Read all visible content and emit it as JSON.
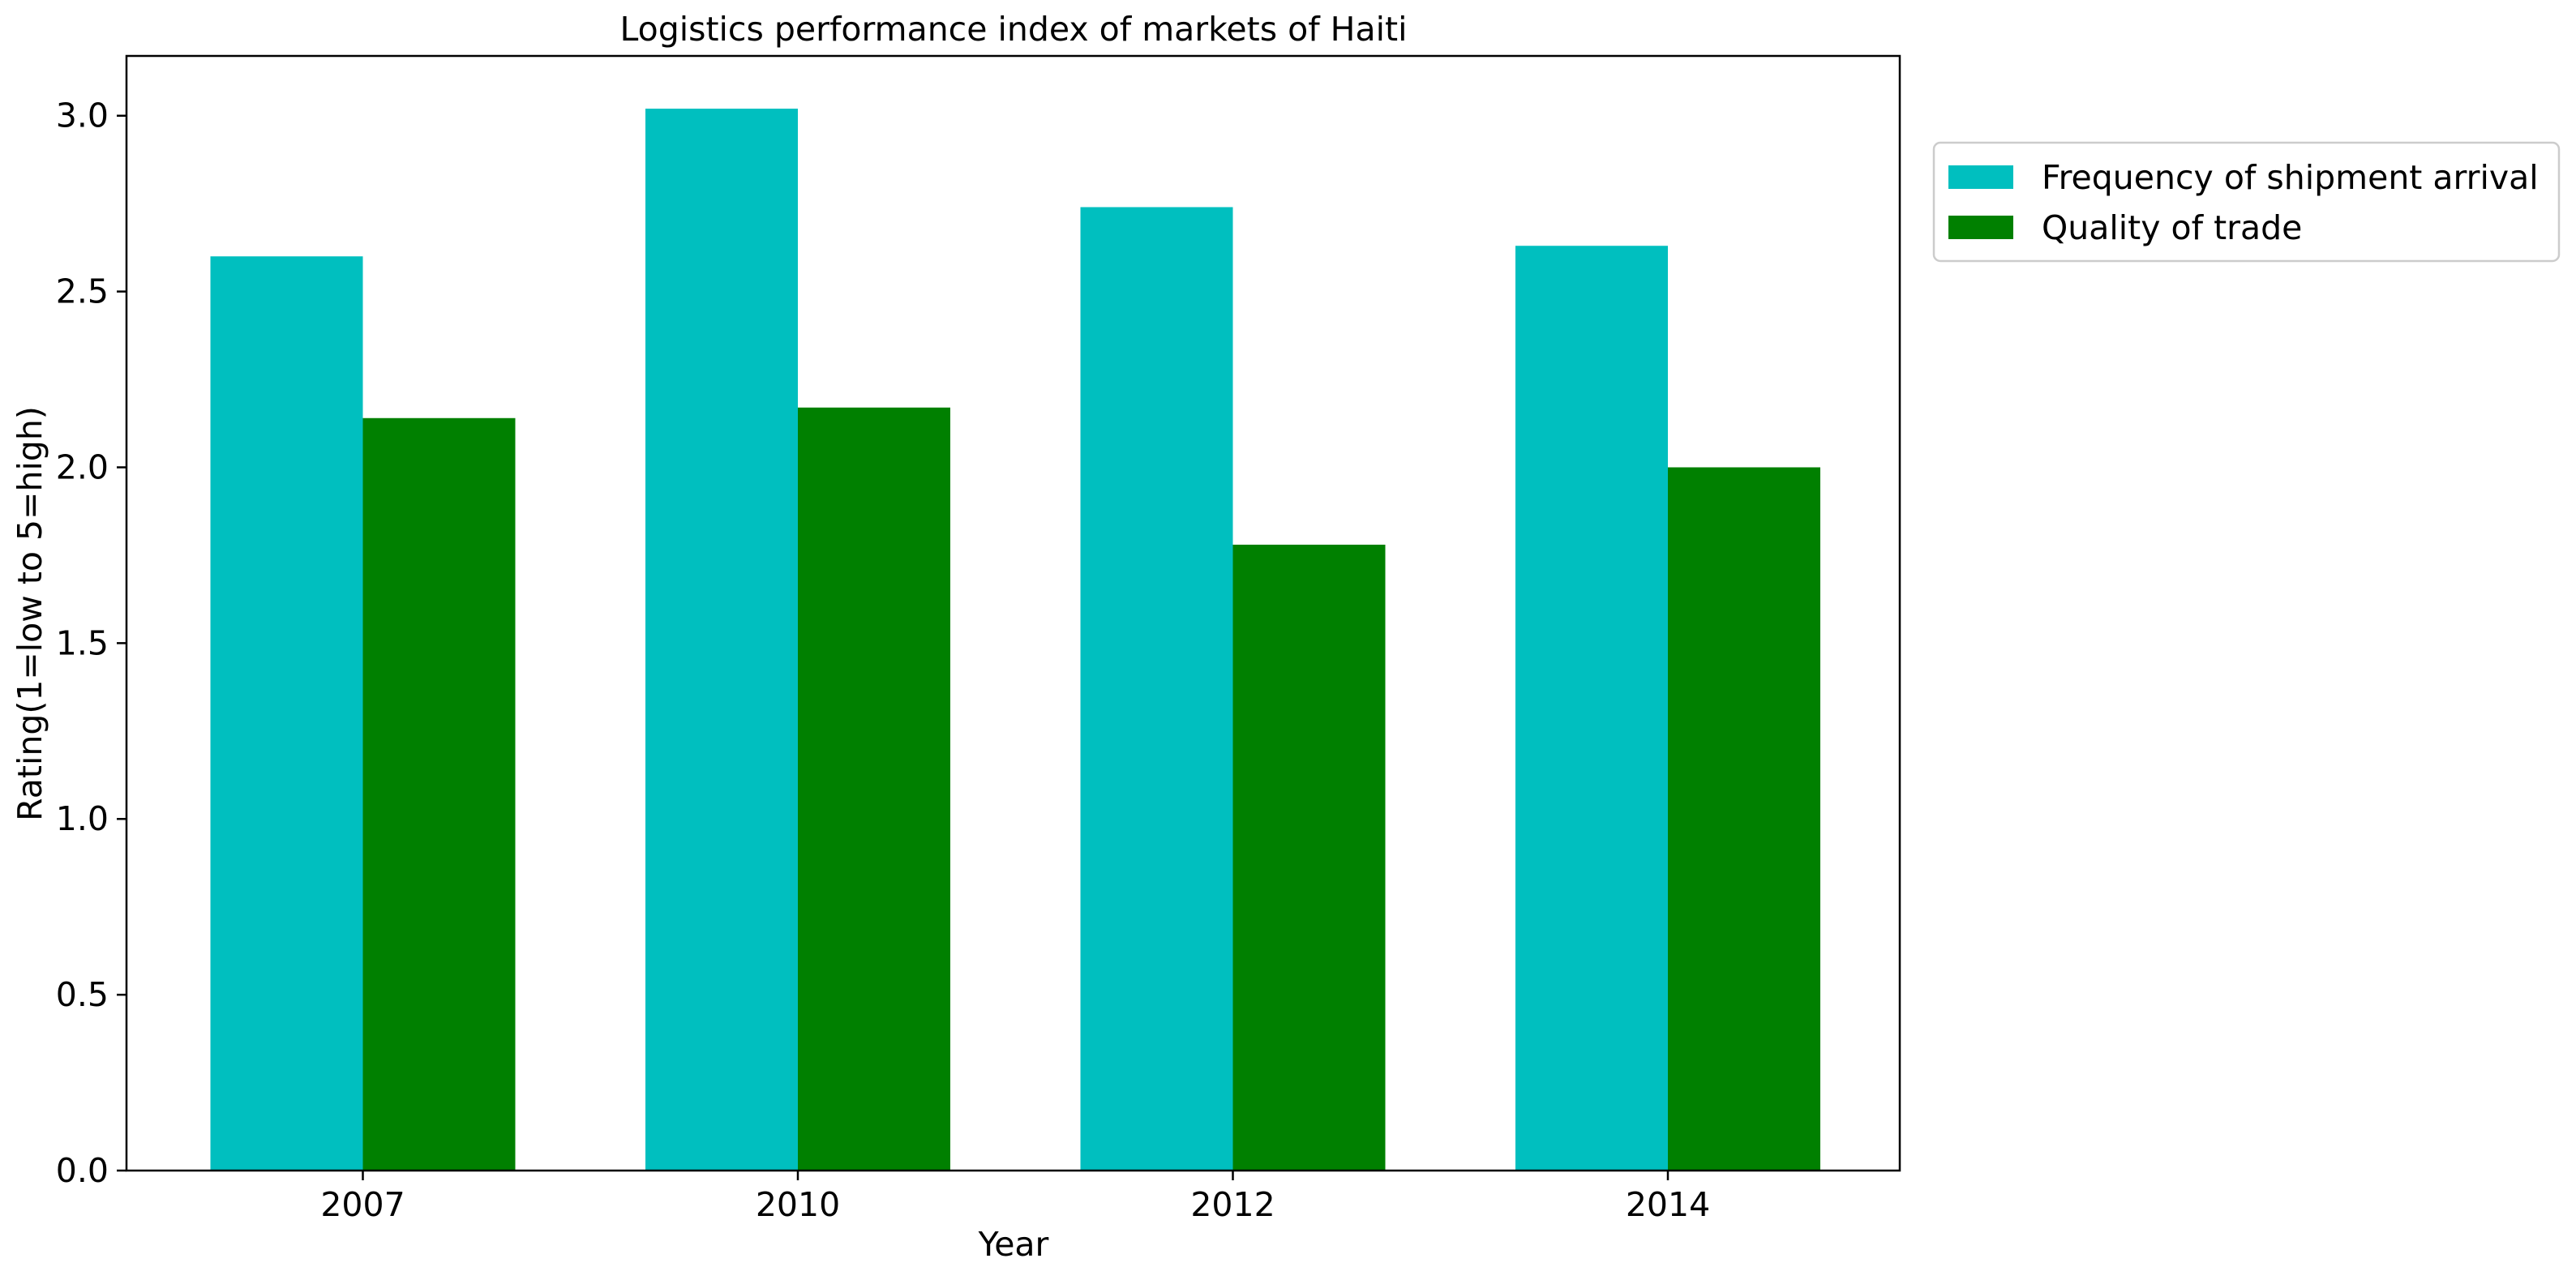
{
  "chart_data": {
    "type": "bar",
    "title": "Logistics performance index of markets of Haiti",
    "xlabel": "Year",
    "ylabel": "Rating(1=low to 5=high)",
    "categories": [
      "2007",
      "2010",
      "2012",
      "2014"
    ],
    "series": [
      {
        "name": "Frequency of shipment arrival",
        "color": "#00bfbf",
        "values": [
          2.6,
          3.02,
          2.74,
          2.63
        ]
      },
      {
        "name": "Quality of trade",
        "color": "#008000",
        "values": [
          2.14,
          2.17,
          1.78,
          2.0
        ]
      }
    ],
    "ylim": [
      0,
      3.17
    ],
    "yticks": [
      "0.0",
      "0.5",
      "1.0",
      "1.5",
      "2.0",
      "2.5",
      "3.0"
    ],
    "grid": false,
    "legend_position": "outside upper right"
  }
}
